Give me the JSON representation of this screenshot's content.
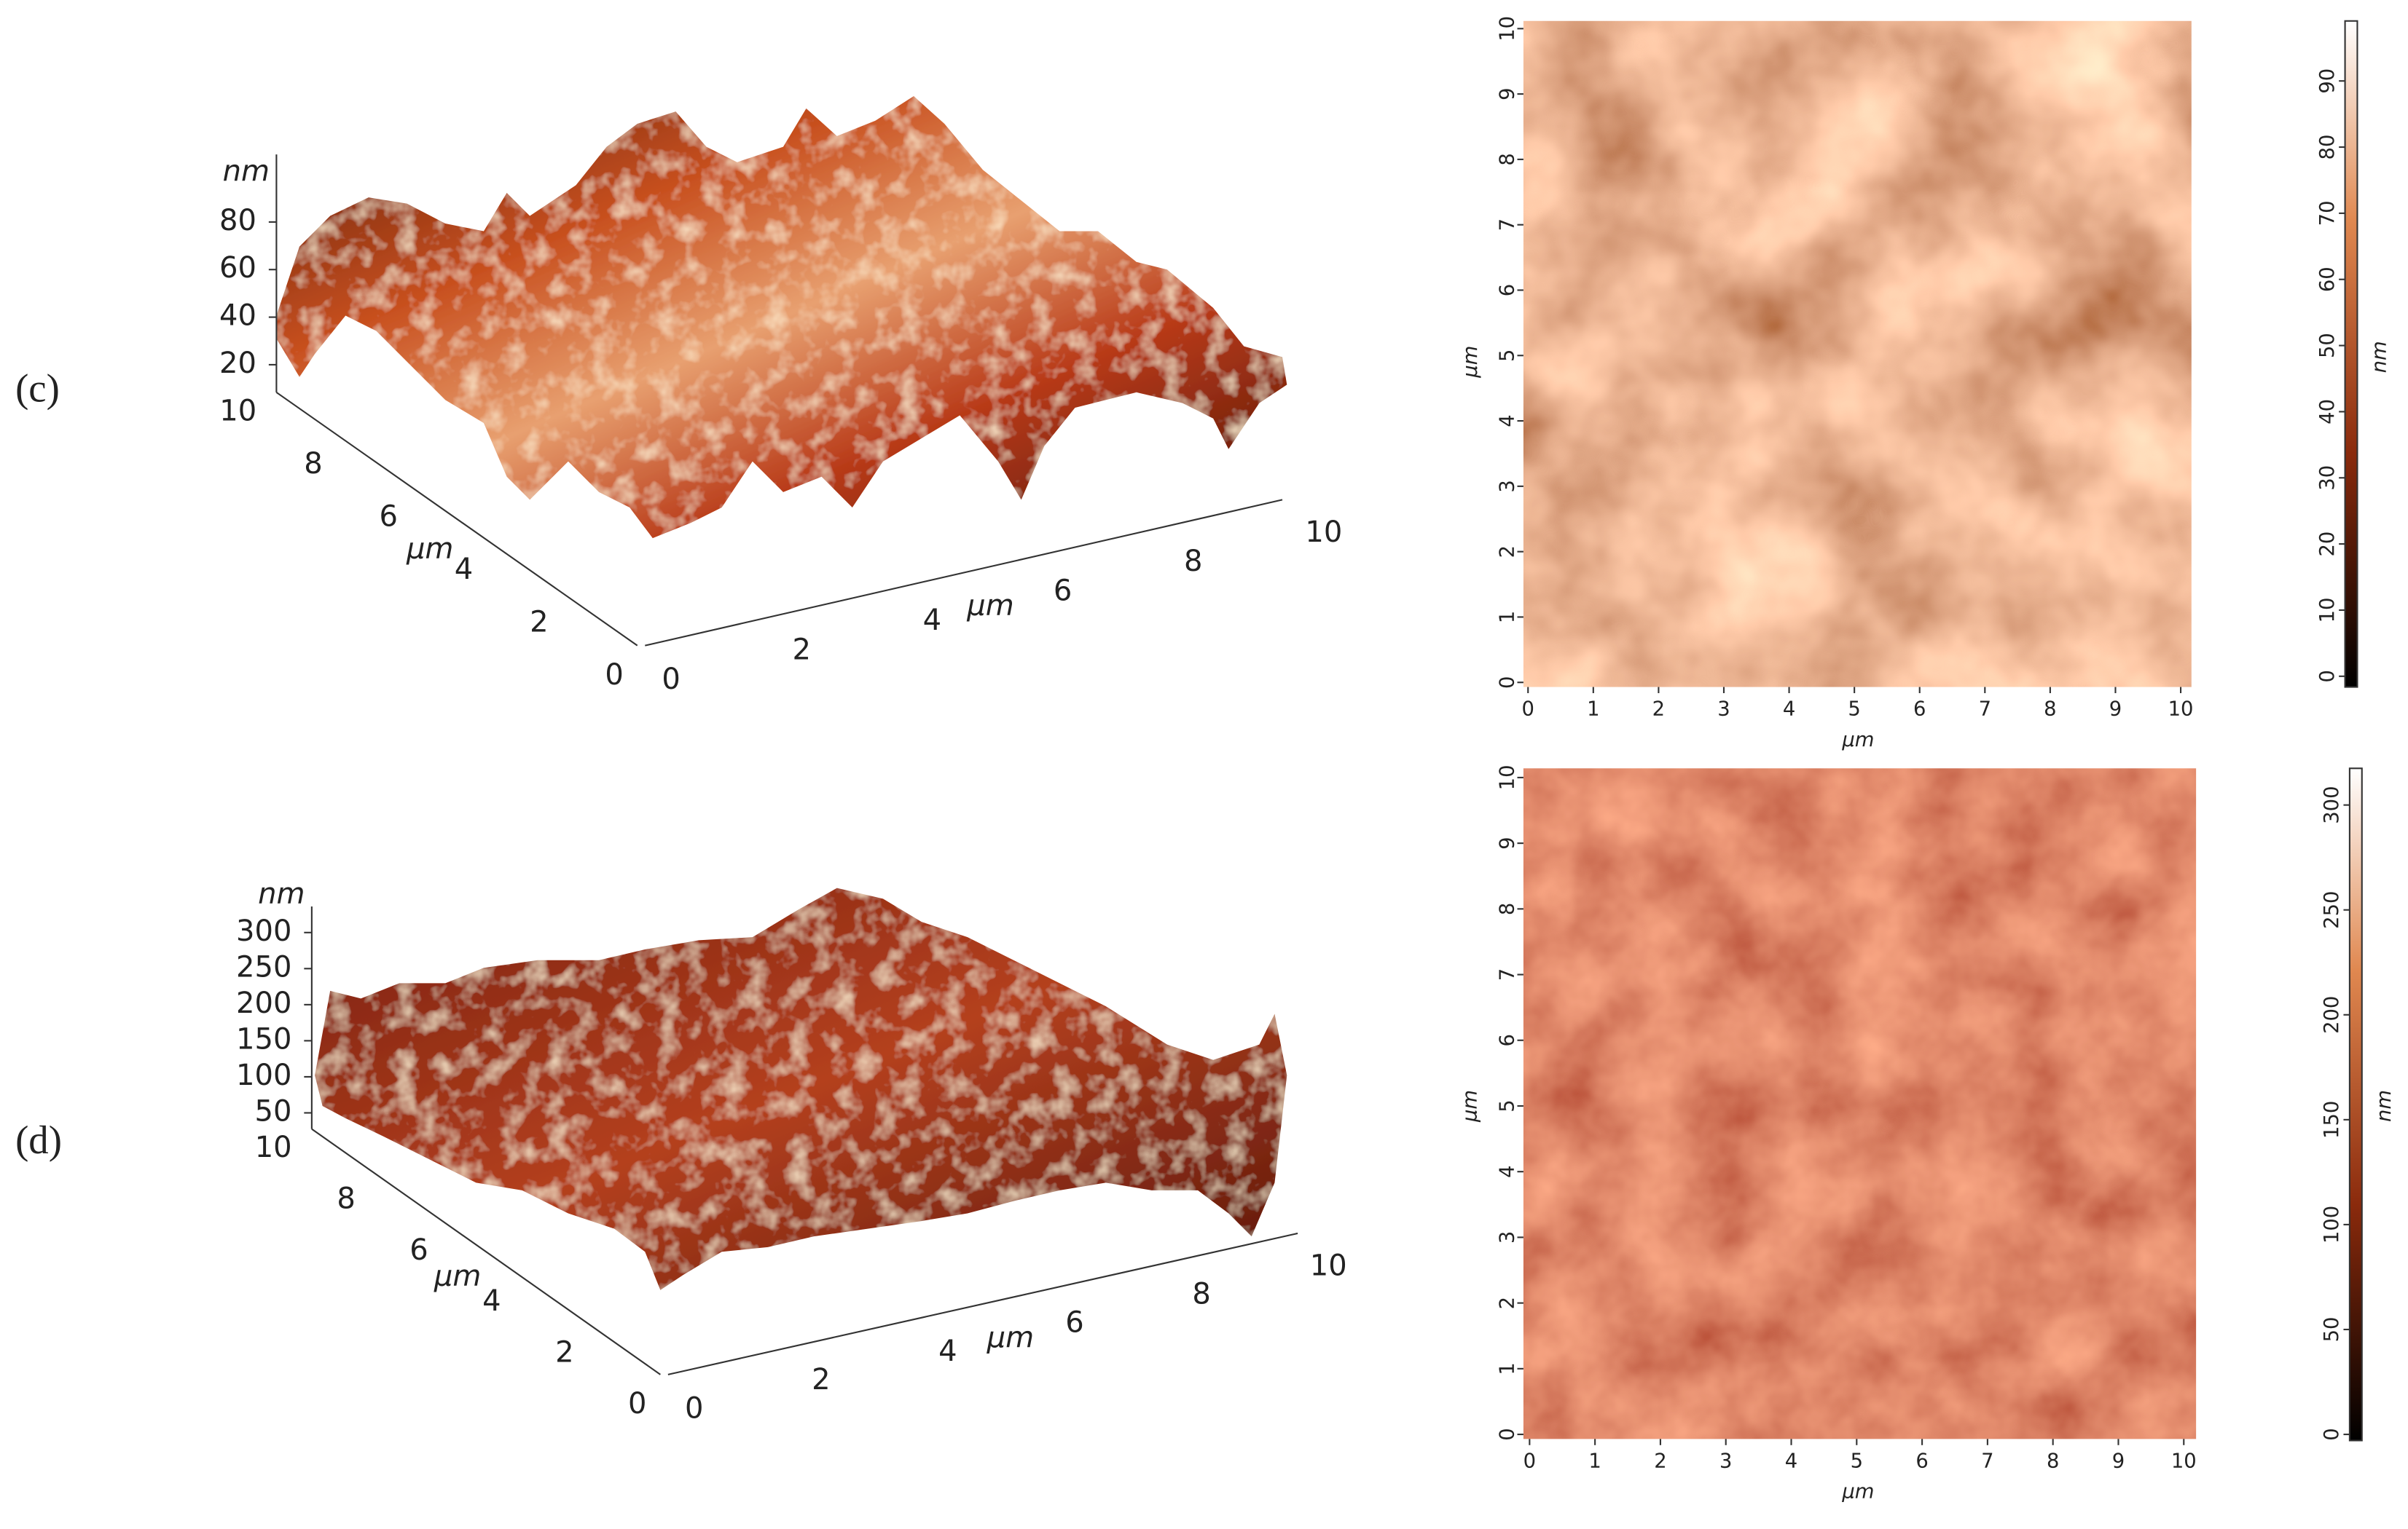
{
  "panels": [
    {
      "label": "(c)",
      "surface": {
        "z_label": "nm",
        "z_ticks": [
          20,
          40,
          60,
          80
        ],
        "depth_ticks": [
          0,
          2,
          4,
          6,
          8,
          10
        ],
        "depth_label": "μm",
        "x_ticks": [
          0,
          2,
          4,
          6,
          8,
          10
        ],
        "x_label": "μm"
      },
      "map": {
        "x_ticks": [
          0,
          1,
          2,
          3,
          4,
          5,
          6,
          7,
          8,
          9,
          10
        ],
        "x_label": "μm",
        "y_ticks": [
          0,
          1,
          2,
          3,
          4,
          5,
          6,
          7,
          8,
          9,
          10
        ],
        "y_label": "μm"
      },
      "colorbar": {
        "label": "nm",
        "ticks": [
          0,
          10,
          20,
          30,
          40,
          50,
          60,
          70,
          80,
          90
        ]
      }
    },
    {
      "label": "(d)",
      "surface": {
        "z_label": "nm",
        "z_ticks": [
          50,
          100,
          150,
          200,
          250,
          300
        ],
        "depth_ticks": [
          0,
          2,
          4,
          6,
          8,
          10
        ],
        "depth_label": "μm",
        "x_ticks": [
          0,
          2,
          4,
          6,
          8,
          10
        ],
        "x_label": "μm"
      },
      "map": {
        "x_ticks": [
          0,
          1,
          2,
          3,
          4,
          5,
          6,
          7,
          8,
          9,
          10
        ],
        "x_label": "μm",
        "y_ticks": [
          0,
          1,
          2,
          3,
          4,
          5,
          6,
          7,
          8,
          9,
          10
        ],
        "y_label": "μm"
      },
      "colorbar": {
        "label": "nm",
        "ticks": [
          0,
          50,
          100,
          150,
          200,
          250,
          300
        ]
      }
    }
  ]
}
